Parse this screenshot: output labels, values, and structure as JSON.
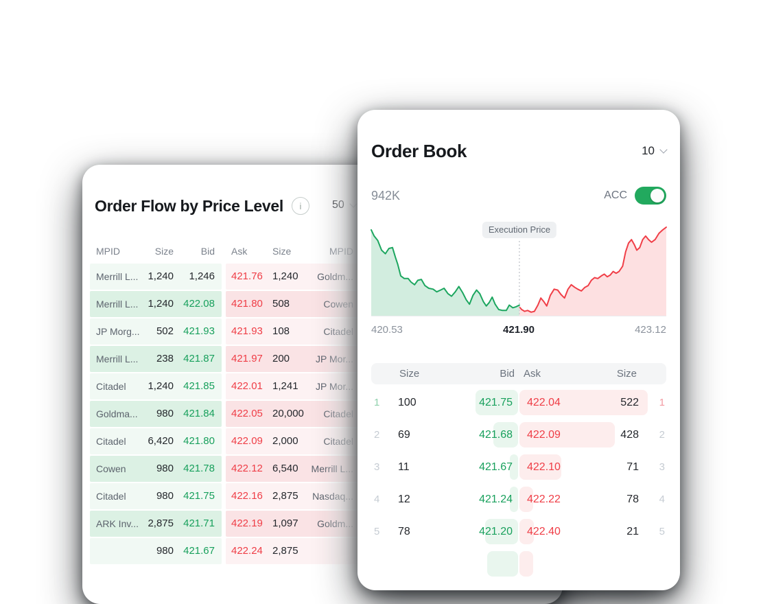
{
  "order_flow": {
    "title": "Order Flow by Price Level",
    "info_label": "i",
    "page_size": "50",
    "columns": [
      "MPID",
      "Size",
      "Bid",
      "Ask",
      "Size",
      "MPID"
    ],
    "rows": [
      {
        "bid_mpid": "Merrill L...",
        "bid_size": "1,240",
        "bid": "1,246",
        "bid_plain": true,
        "ask": "421.76",
        "ask_size": "1,240",
        "ask_mpid": "Goldm..."
      },
      {
        "bid_mpid": "Merrill L...",
        "bid_size": "1,240",
        "bid": "422.08",
        "bid_plain": false,
        "ask": "421.80",
        "ask_size": "508",
        "ask_mpid": "Cowen"
      },
      {
        "bid_mpid": "JP Morg...",
        "bid_size": "502",
        "bid": "421.93",
        "bid_plain": false,
        "ask": "421.93",
        "ask_size": "108",
        "ask_mpid": "Citadel"
      },
      {
        "bid_mpid": "Merrill L...",
        "bid_size": "238",
        "bid": "421.87",
        "bid_plain": false,
        "ask": "421.97",
        "ask_size": "200",
        "ask_mpid": "JP Mor..."
      },
      {
        "bid_mpid": "Citadel",
        "bid_size": "1,240",
        "bid": "421.85",
        "bid_plain": false,
        "ask": "422.01",
        "ask_size": "1,241",
        "ask_mpid": "JP Mor..."
      },
      {
        "bid_mpid": "Goldma...",
        "bid_size": "980",
        "bid": "421.84",
        "bid_plain": false,
        "ask": "422.05",
        "ask_size": "20,000",
        "ask_mpid": "Citadel"
      },
      {
        "bid_mpid": "Citadel",
        "bid_size": "6,420",
        "bid": "421.80",
        "bid_plain": false,
        "ask": "422.09",
        "ask_size": "2,000",
        "ask_mpid": "Citadel"
      },
      {
        "bid_mpid": "Cowen",
        "bid_size": "980",
        "bid": "421.78",
        "bid_plain": false,
        "ask": "422.12",
        "ask_size": "6,540",
        "ask_mpid": "Merrill L..."
      },
      {
        "bid_mpid": "Citadel",
        "bid_size": "980",
        "bid": "421.75",
        "bid_plain": false,
        "ask": "422.16",
        "ask_size": "2,875",
        "ask_mpid": "Nasdaq..."
      },
      {
        "bid_mpid": "ARK Inv...",
        "bid_size": "2,875",
        "bid": "421.71",
        "bid_plain": false,
        "ask": "422.19",
        "ask_size": "1,097",
        "ask_mpid": "Goldm..."
      },
      {
        "bid_mpid": "",
        "bid_size": "980",
        "bid": "421.67",
        "bid_plain": false,
        "ask": "422.24",
        "ask_size": "2,875",
        "ask_mpid": ""
      }
    ]
  },
  "order_book": {
    "title": "Order Book",
    "page_size": "10",
    "volume": "942K",
    "acc_label": "ACC",
    "acc_on": true,
    "columns": [
      "Size",
      "Bid",
      "Ask",
      "Size"
    ],
    "rows": [
      {
        "idx": "1",
        "bid_size": "100",
        "bid": "421.75",
        "ask": "422.04",
        "ask_size": "522",
        "idx2": "1",
        "bid_bar": 62,
        "ask_bar": 187,
        "highlight": true
      },
      {
        "idx": "2",
        "bid_size": "69",
        "bid": "421.68",
        "ask": "422.09",
        "ask_size": "428",
        "idx2": "2",
        "bid_bar": 36,
        "ask_bar": 139,
        "highlight": false
      },
      {
        "idx": "3",
        "bid_size": "11",
        "bid": "421.67",
        "ask": "422.10",
        "ask_size": "71",
        "idx2": "3",
        "bid_bar": 12,
        "ask_bar": 61,
        "highlight": false
      },
      {
        "idx": "4",
        "bid_size": "12",
        "bid": "421.24",
        "ask": "422.22",
        "ask_size": "78",
        "idx2": "4",
        "bid_bar": 12,
        "ask_bar": 20,
        "highlight": false
      },
      {
        "idx": "5",
        "bid_size": "78",
        "bid": "421.20",
        "ask": "422.40",
        "ask_size": "21",
        "idx2": "5",
        "bid_bar": 48,
        "ask_bar": 21,
        "highlight": false
      },
      {
        "idx": "",
        "bid_size": "",
        "bid": "",
        "ask": "",
        "ask_size": "",
        "idx2": "",
        "bid_bar": 45,
        "ask_bar": 20,
        "highlight": false
      }
    ]
  },
  "chart_data": {
    "type": "area",
    "title": "Execution Price",
    "execution_price": "421.90",
    "x_labels": [
      "420.53",
      "421.90",
      "423.12"
    ],
    "x_range": [
      420.53,
      423.12
    ],
    "legend": "none",
    "grid": "off",
    "divider_x": 0.502,
    "series": [
      {
        "name": "bid-side",
        "color": "#1ca65f",
        "fill": "rgba(28,166,95,0.20)",
        "points": [
          [
            0,
            0.97
          ],
          [
            0.01,
            0.9
          ],
          [
            0.022,
            0.85
          ],
          [
            0.035,
            0.74
          ],
          [
            0.048,
            0.7
          ],
          [
            0.06,
            0.76
          ],
          [
            0.072,
            0.77
          ],
          [
            0.082,
            0.66
          ],
          [
            0.09,
            0.58
          ],
          [
            0.1,
            0.45
          ],
          [
            0.112,
            0.42
          ],
          [
            0.125,
            0.42
          ],
          [
            0.135,
            0.38
          ],
          [
            0.147,
            0.35
          ],
          [
            0.158,
            0.4
          ],
          [
            0.17,
            0.41
          ],
          [
            0.182,
            0.34
          ],
          [
            0.195,
            0.31
          ],
          [
            0.21,
            0.3
          ],
          [
            0.222,
            0.27
          ],
          [
            0.235,
            0.29
          ],
          [
            0.247,
            0.31
          ],
          [
            0.26,
            0.25
          ],
          [
            0.272,
            0.22
          ],
          [
            0.285,
            0.27
          ],
          [
            0.297,
            0.33
          ],
          [
            0.31,
            0.26
          ],
          [
            0.322,
            0.18
          ],
          [
            0.333,
            0.13
          ],
          [
            0.345,
            0.23
          ],
          [
            0.357,
            0.29
          ],
          [
            0.368,
            0.25
          ],
          [
            0.38,
            0.16
          ],
          [
            0.39,
            0.11
          ],
          [
            0.4,
            0.15
          ],
          [
            0.41,
            0.21
          ],
          [
            0.42,
            0.13
          ],
          [
            0.432,
            0.07
          ],
          [
            0.445,
            0.06
          ],
          [
            0.458,
            0.06
          ],
          [
            0.468,
            0.12
          ],
          [
            0.48,
            0.09
          ],
          [
            0.49,
            0.1
          ],
          [
            0.502,
            0.12
          ]
        ]
      },
      {
        "name": "ask-side",
        "color": "#f03e47",
        "fill": "rgba(240,62,71,0.16)",
        "points": [
          [
            0.502,
            0.1
          ],
          [
            0.51,
            0.07
          ],
          [
            0.52,
            0.05
          ],
          [
            0.53,
            0.06
          ],
          [
            0.542,
            0.04
          ],
          [
            0.553,
            0.05
          ],
          [
            0.565,
            0.12
          ],
          [
            0.575,
            0.2
          ],
          [
            0.585,
            0.16
          ],
          [
            0.595,
            0.11
          ],
          [
            0.607,
            0.23
          ],
          [
            0.62,
            0.3
          ],
          [
            0.632,
            0.29
          ],
          [
            0.643,
            0.24
          ],
          [
            0.655,
            0.2
          ],
          [
            0.667,
            0.3
          ],
          [
            0.678,
            0.35
          ],
          [
            0.69,
            0.32
          ],
          [
            0.7,
            0.3
          ],
          [
            0.712,
            0.28
          ],
          [
            0.724,
            0.32
          ],
          [
            0.735,
            0.34
          ],
          [
            0.746,
            0.4
          ],
          [
            0.757,
            0.43
          ],
          [
            0.768,
            0.42
          ],
          [
            0.78,
            0.45
          ],
          [
            0.79,
            0.47
          ],
          [
            0.8,
            0.44
          ],
          [
            0.81,
            0.46
          ],
          [
            0.82,
            0.5
          ],
          [
            0.83,
            0.48
          ],
          [
            0.84,
            0.5
          ],
          [
            0.852,
            0.56
          ],
          [
            0.862,
            0.72
          ],
          [
            0.872,
            0.82
          ],
          [
            0.882,
            0.86
          ],
          [
            0.892,
            0.8
          ],
          [
            0.9,
            0.74
          ],
          [
            0.91,
            0.77
          ],
          [
            0.92,
            0.86
          ],
          [
            0.93,
            0.9
          ],
          [
            0.94,
            0.86
          ],
          [
            0.95,
            0.83
          ],
          [
            0.962,
            0.86
          ],
          [
            0.975,
            0.93
          ],
          [
            0.988,
            0.97
          ],
          [
            1,
            1
          ]
        ]
      }
    ]
  },
  "colors": {
    "green_text": "#18a05c",
    "red_text": "#ef3d46",
    "bid_pill_bg": "#e9f6ee",
    "ask_pill_bg": "#fdeded",
    "toggle_on": "#22a95e",
    "flow_bid_light": "#f1f9f4",
    "flow_bid_dark": "#dcf1e4",
    "flow_ask_light": "#fdf2f3",
    "flow_ask_dark": "#fae3e5",
    "header_bar_bg": "#f4f5f6"
  }
}
